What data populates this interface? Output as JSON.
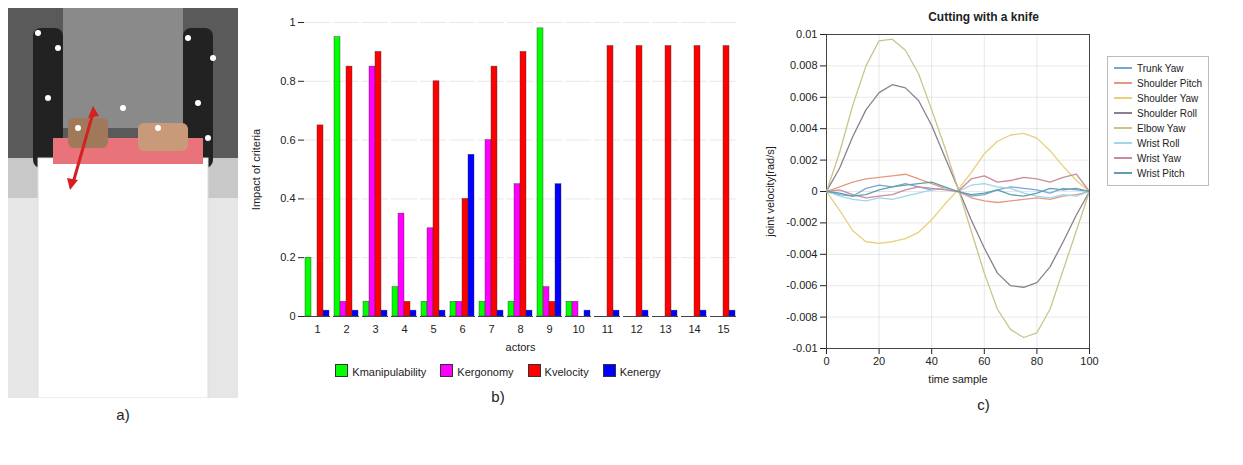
{
  "chart_data": [
    {
      "type": "image",
      "panel": "a)"
    },
    {
      "type": "bar",
      "panel": "b)",
      "xlabel": "actors",
      "ylabel": "Impact of criteria",
      "categories": [
        1,
        2,
        3,
        4,
        5,
        6,
        7,
        8,
        9,
        10,
        11,
        12,
        13,
        14,
        15
      ],
      "series": [
        {
          "name": "Kmanipulability",
          "color": "#00ff00",
          "values": [
            0.2,
            0.95,
            0.05,
            0.1,
            0.05,
            0.05,
            0.05,
            0.05,
            0.98,
            0.05,
            0.0,
            0.0,
            0.0,
            0.0,
            0.0
          ]
        },
        {
          "name": "Kergonomy",
          "color": "#ff00ff",
          "values": [
            0.0,
            0.05,
            0.85,
            0.35,
            0.3,
            0.05,
            0.6,
            0.45,
            0.1,
            0.05,
            0.0,
            0.0,
            0.0,
            0.0,
            0.0
          ]
        },
        {
          "name": "Kvelocity",
          "color": "#ff0000",
          "values": [
            0.65,
            0.85,
            0.9,
            0.05,
            0.8,
            0.4,
            0.85,
            0.9,
            0.05,
            0.0,
            0.92,
            0.92,
            0.92,
            0.92,
            0.92
          ]
        },
        {
          "name": "Kenergy",
          "color": "#0000ff",
          "values": [
            0.02,
            0.02,
            0.02,
            0.02,
            0.02,
            0.55,
            0.02,
            0.02,
            0.45,
            0.02,
            0.02,
            0.02,
            0.02,
            0.02,
            0.02
          ]
        }
      ],
      "ylim": [
        0,
        1
      ],
      "yticks": [
        0,
        0.2,
        0.4,
        0.6,
        0.8,
        1
      ],
      "grid": true,
      "legend": "bottom"
    },
    {
      "type": "line",
      "panel": "c)",
      "title": "Cutting with a knife",
      "xlabel": "time sample",
      "ylabel": "joint velocity[rad/s]",
      "x": [
        0,
        5,
        10,
        15,
        20,
        25,
        30,
        35,
        40,
        45,
        50,
        55,
        60,
        65,
        70,
        75,
        80,
        85,
        90,
        95,
        100
      ],
      "series": [
        {
          "name": "Trunk Yaw",
          "color": "#7aa6d6",
          "values": [
            0,
            -0.0002,
            -0.0003,
            0.0002,
            0.0004,
            0.0003,
            0.0005,
            0.0003,
            0.0001,
            0.0002,
            0,
            -0.0003,
            -0.0002,
            0.0001,
            0.0003,
            0.0002,
            0.0001,
            -0.0001,
            0.0002,
            0.0001,
            0
          ]
        },
        {
          "name": "Shoulder Pitch",
          "color": "#e59a80",
          "values": [
            0,
            0.0003,
            0.0006,
            0.0008,
            0.0009,
            0.001,
            0.0011,
            0.0008,
            0.0005,
            0.0002,
            0,
            -0.0004,
            -0.0006,
            -0.0007,
            -0.0006,
            -0.0005,
            -0.0004,
            -0.0005,
            -0.0003,
            -0.0002,
            0
          ]
        },
        {
          "name": "Shoulder Yaw",
          "color": "#e8cf7a",
          "values": [
            0,
            -0.0012,
            -0.0025,
            -0.0032,
            -0.0033,
            -0.0032,
            -0.003,
            -0.0026,
            -0.0018,
            -0.0008,
            0.0001,
            0.0012,
            0.0024,
            0.0032,
            0.0036,
            0.0037,
            0.0034,
            0.0026,
            0.0016,
            0.0007,
            0
          ]
        },
        {
          "name": "Shoulder Roll",
          "color": "#8c7f8f",
          "values": [
            0,
            0.0015,
            0.0035,
            0.0052,
            0.0063,
            0.0068,
            0.0066,
            0.0058,
            0.0042,
            0.0022,
            0.0002,
            -0.0018,
            -0.0036,
            -0.0052,
            -0.006,
            -0.0061,
            -0.0058,
            -0.0048,
            -0.0032,
            -0.0015,
            0
          ]
        },
        {
          "name": "Elbow Yaw",
          "color": "#c8c48a",
          "values": [
            0,
            0.0025,
            0.0055,
            0.008,
            0.0096,
            0.0097,
            0.009,
            0.0075,
            0.0052,
            0.0028,
            0.0002,
            -0.0025,
            -0.0052,
            -0.0075,
            -0.0088,
            -0.0093,
            -0.009,
            -0.0075,
            -0.005,
            -0.0025,
            0
          ]
        },
        {
          "name": "Wrist Roll",
          "color": "#9fd6ee",
          "values": [
            0,
            -0.0003,
            -0.0005,
            -0.0006,
            -0.0004,
            -0.0005,
            -0.0003,
            -0.0001,
            0.0001,
            0.0002,
            0,
            0.0004,
            0.0005,
            0.0003,
            0.0002,
            -0.0001,
            -0.0003,
            -0.0004,
            -0.0002,
            -0.0003,
            0
          ]
        },
        {
          "name": "Wrist Yaw",
          "color": "#c98d99",
          "values": [
            0,
            0.0001,
            -0.0002,
            -0.0004,
            -0.0003,
            -0.0002,
            0.0001,
            0.0003,
            0.0002,
            0.0001,
            0,
            0.0008,
            0.001,
            0.0006,
            0.0007,
            0.0009,
            0.0008,
            0.0006,
            0.0009,
            0.0011,
            0
          ]
        },
        {
          "name": "Wrist Pitch",
          "color": "#5f9fb0",
          "values": [
            0,
            -0.0001,
            -0.0003,
            -0.0002,
            0.0001,
            0.0003,
            0.0004,
            0.0005,
            0.0006,
            0.0003,
            0,
            -0.0002,
            -0.0001,
            0.0001,
            -0.0002,
            -0.0003,
            -0.0001,
            0.0002,
            0.0001,
            0.0002,
            0
          ]
        }
      ],
      "xlim": [
        0,
        100
      ],
      "xticks": [
        0,
        20,
        40,
        60,
        80,
        100
      ],
      "ylim": [
        -0.01,
        0.01
      ],
      "yticks": [
        -0.01,
        -0.008,
        -0.006,
        -0.004,
        -0.002,
        0,
        0.002,
        0.004,
        0.006,
        0.008,
        0.01
      ],
      "grid": true,
      "legend": "right"
    }
  ]
}
